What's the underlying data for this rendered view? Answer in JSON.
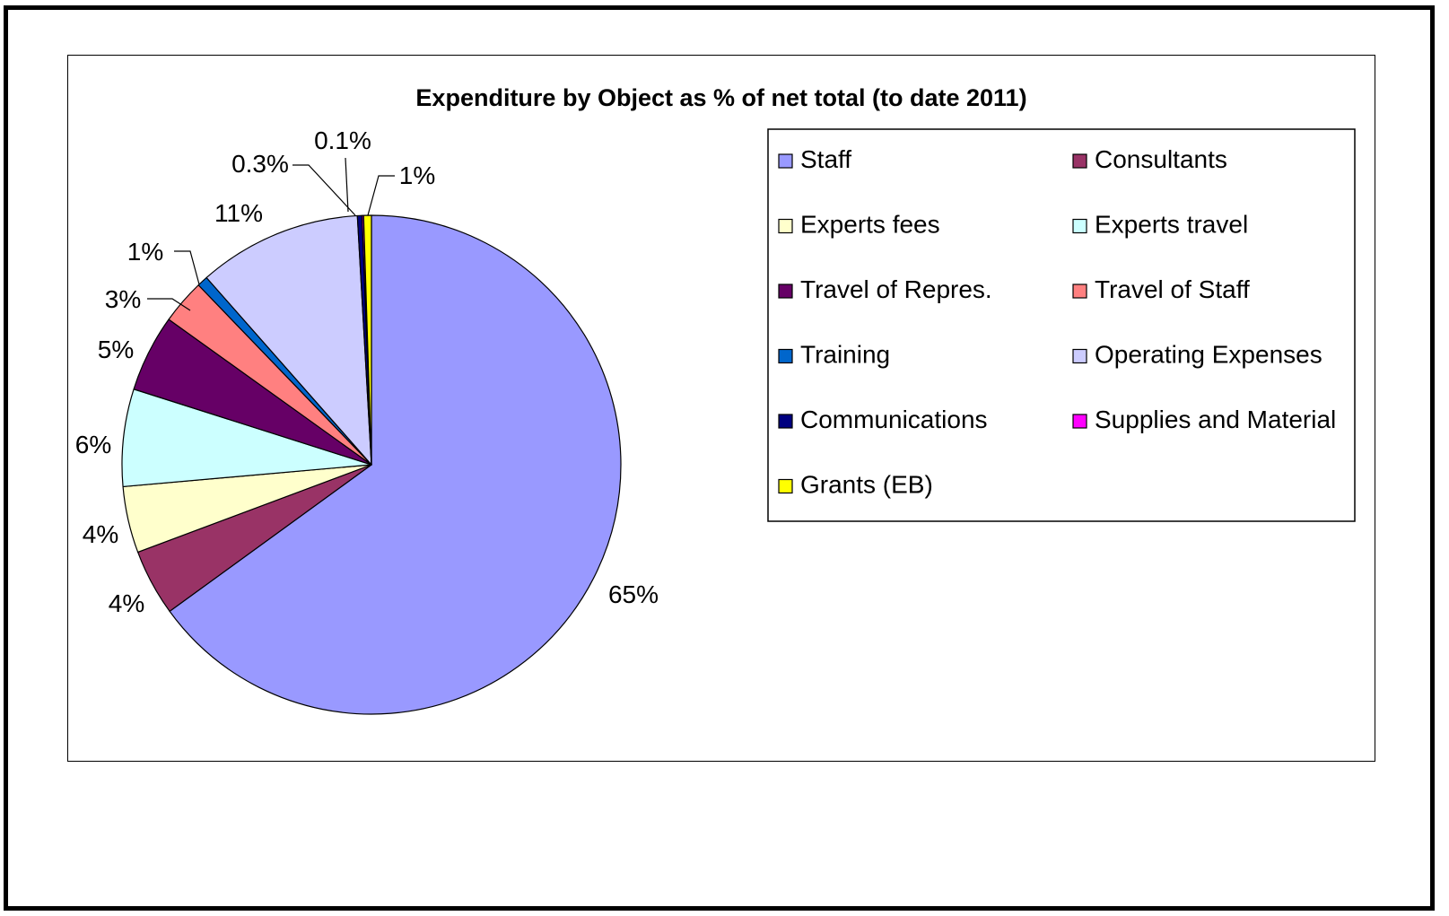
{
  "chart_data": {
    "type": "pie",
    "title": "Expenditure by Object as %  of net total (to date 2011)",
    "legend_position": "right",
    "slices": [
      {
        "label": "Staff",
        "value": 65,
        "display": "65%",
        "color": "#9999FF"
      },
      {
        "label": "Consultants",
        "value": 4.3,
        "display": "4%",
        "color": "#993366"
      },
      {
        "label": "Experts fees",
        "value": 4.3,
        "display": "4%",
        "color": "#FFFFCC"
      },
      {
        "label": "Experts travel",
        "value": 6.3,
        "display": "6%",
        "color": "#CCFFFF"
      },
      {
        "label": "Travel of Repres.",
        "value": 5.0,
        "display": "5%",
        "color": "#660066"
      },
      {
        "label": "Travel of Staff",
        "value": 2.9,
        "display": "3%",
        "color": "#FF8080"
      },
      {
        "label": "Training",
        "value": 0.7,
        "display": "1%",
        "color": "#0066CC"
      },
      {
        "label": "Operating Expenses",
        "value": 10.6,
        "display": "11%",
        "color": "#CCCCFF"
      },
      {
        "label": "Communications",
        "value": 0.3,
        "display": "0.3%",
        "color": "#000080"
      },
      {
        "label": "Supplies and Material",
        "value": 0.1,
        "display": "0.1%",
        "color": "#FF00FF"
      },
      {
        "label": "Grants (EB)",
        "value": 0.5,
        "display": "1%",
        "color": "#FFFF00"
      }
    ]
  }
}
